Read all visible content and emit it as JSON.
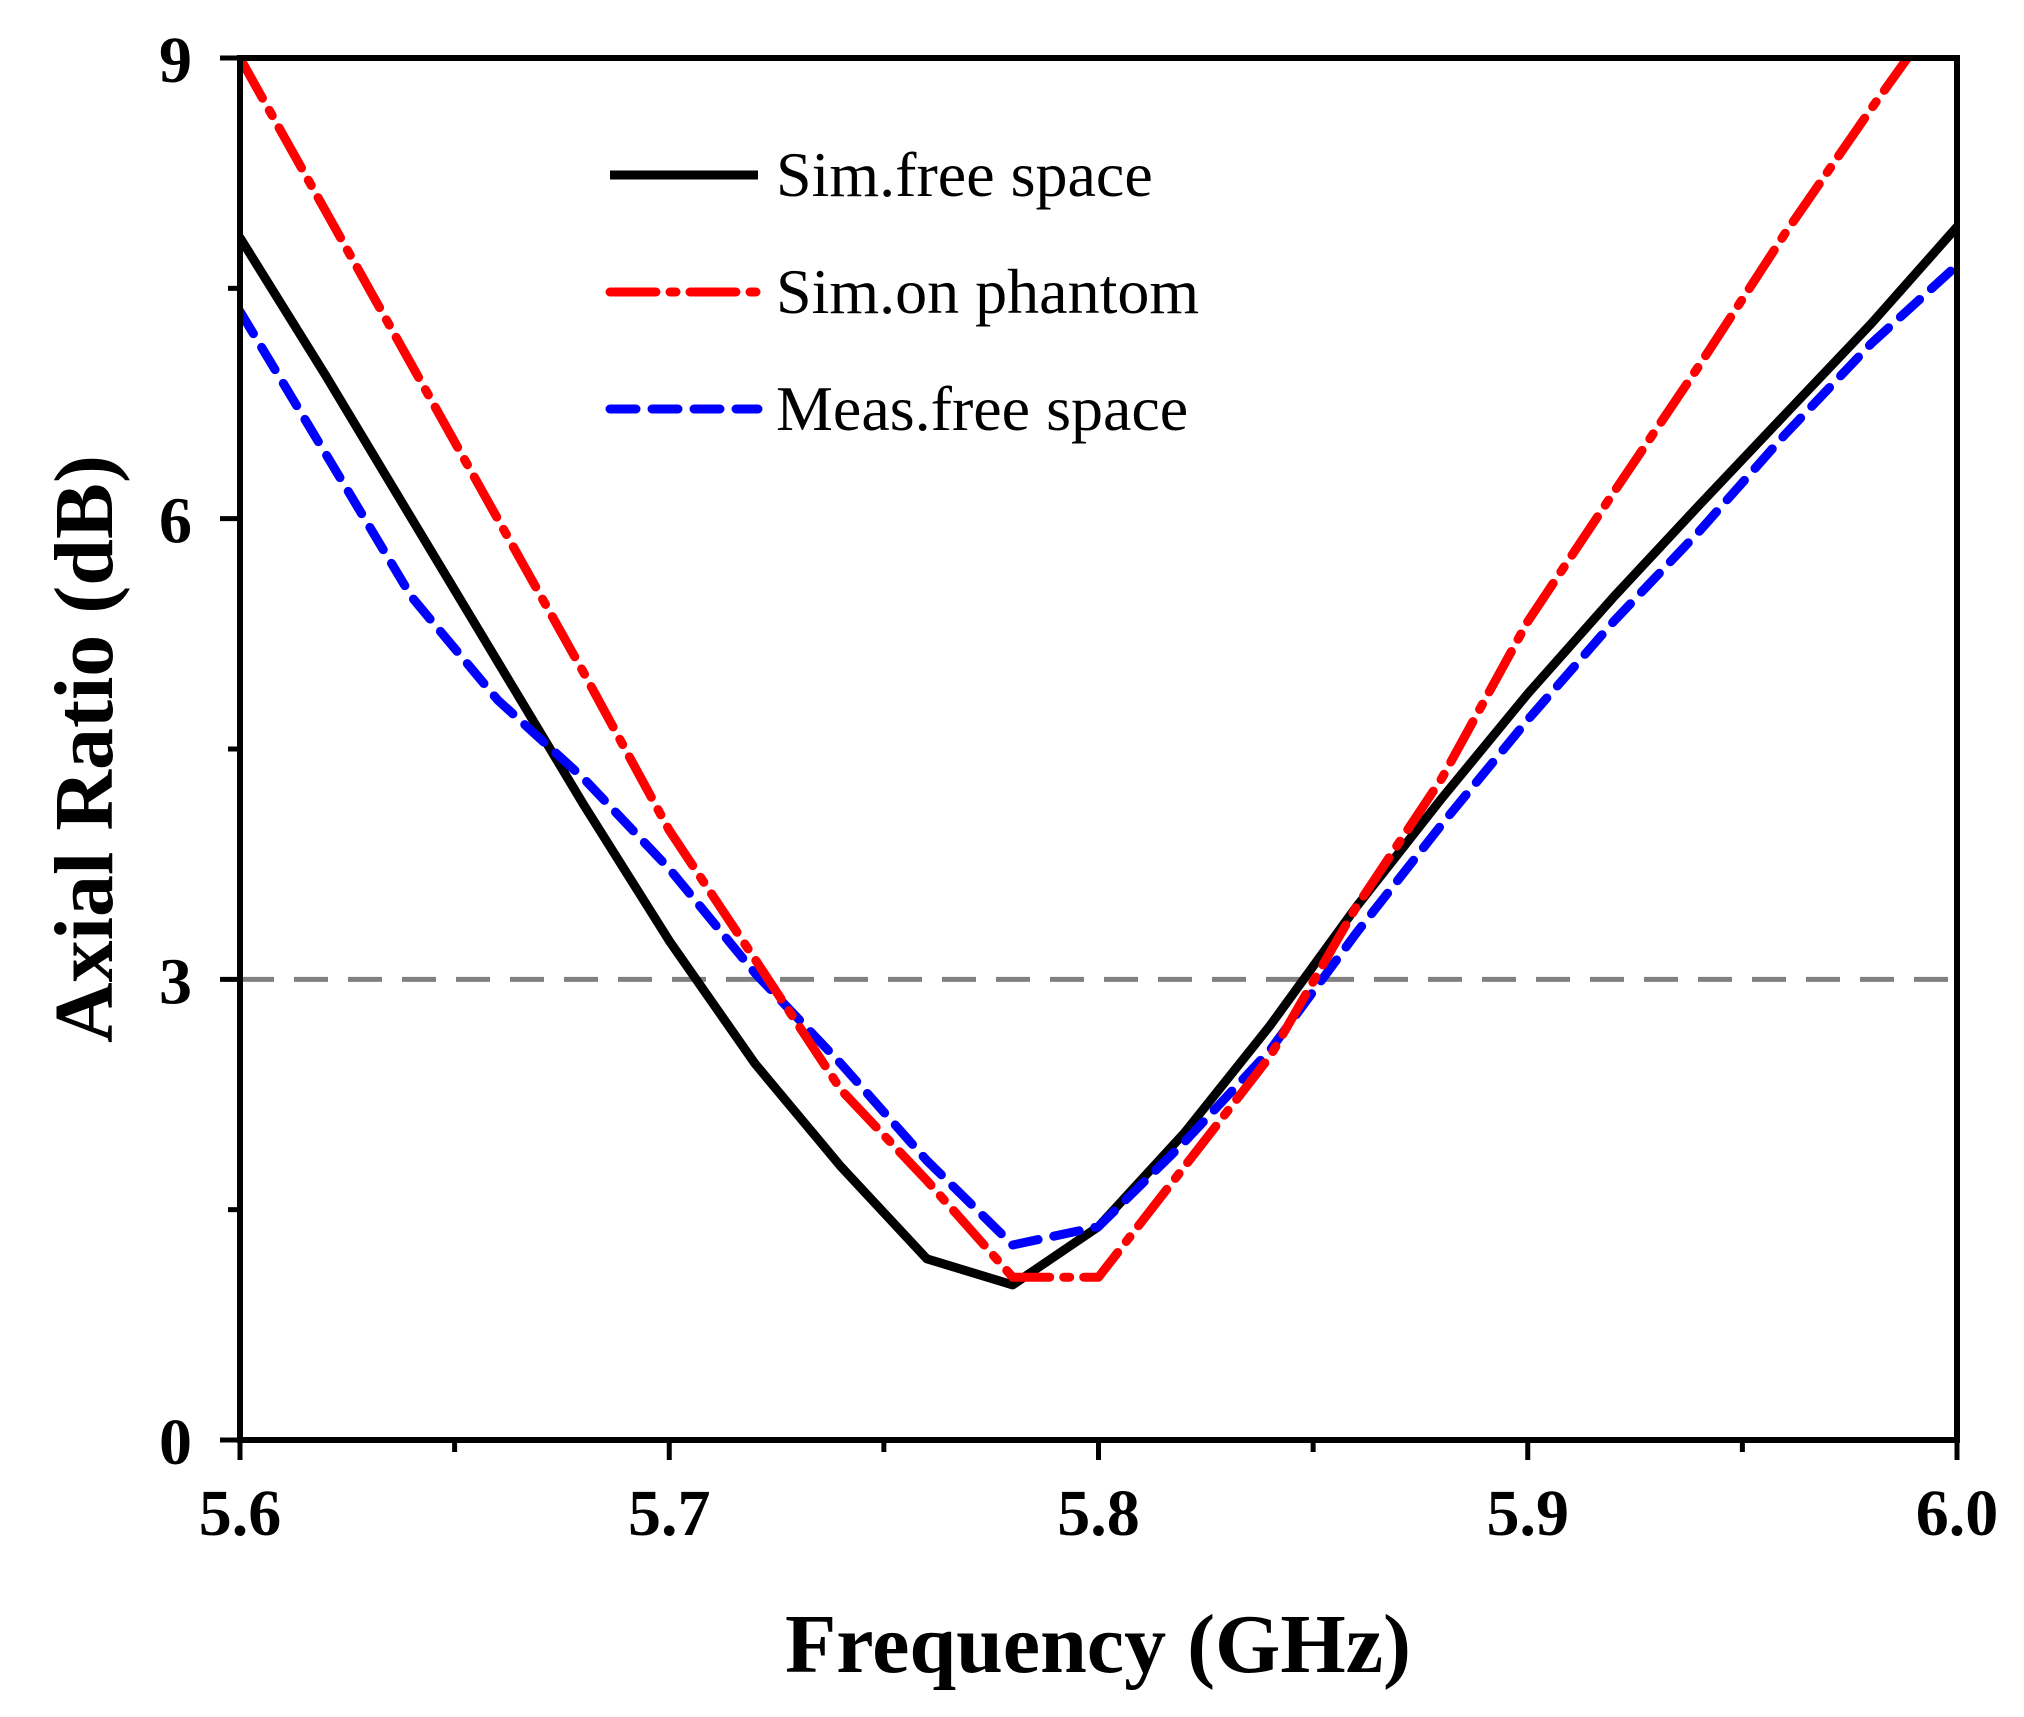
{
  "chart_data": {
    "type": "line",
    "title": "",
    "xlabel": "Frequency (GHz)",
    "ylabel": "Axial Ratio (dB)",
    "xlim": [
      5.6,
      6.0
    ],
    "ylim": [
      0,
      9
    ],
    "xticks": [
      "5.6",
      "5.7",
      "5.8",
      "5.9",
      "6.0"
    ],
    "yticks": [
      "0",
      "3",
      "6",
      "9"
    ],
    "grid": false,
    "legend_position": "top-center",
    "reference_line": {
      "y": 3,
      "color": "#808080",
      "style": "dashed"
    },
    "x": [
      5.6,
      5.62,
      5.64,
      5.66,
      5.68,
      5.7,
      5.72,
      5.74,
      5.76,
      5.78,
      5.8,
      5.82,
      5.84,
      5.86,
      5.88,
      5.9,
      5.92,
      5.94,
      5.96,
      5.98,
      6.0
    ],
    "series": [
      {
        "name": "Sim.free space",
        "color": "#000000",
        "style": "solid",
        "values": [
          7.83,
          6.93,
          6.0,
          5.07,
          4.14,
          3.25,
          2.45,
          1.78,
          1.18,
          1.01,
          1.39,
          2.0,
          2.7,
          3.47,
          4.18,
          4.86,
          5.49,
          6.09,
          6.68,
          7.27,
          7.9
        ]
      },
      {
        "name": "Sim.on phantom",
        "color": "#ff0000",
        "style": "dashdot",
        "values": [
          9.0,
          8.0,
          7.0,
          6.0,
          5.0,
          3.97,
          3.13,
          2.28,
          1.69,
          1.06,
          1.06,
          1.78,
          2.5,
          3.47,
          4.31,
          5.33,
          6.17,
          7.0,
          7.86,
          8.67,
          9.45
        ]
      },
      {
        "name": "Meas.free space",
        "color": "#0000ff",
        "style": "dashed",
        "values": [
          7.35,
          6.42,
          5.49,
          4.82,
          4.31,
          3.72,
          3.04,
          2.45,
          1.82,
          1.27,
          1.39,
          1.94,
          2.54,
          3.3,
          4.01,
          4.69,
          5.33,
          5.92,
          6.55,
          7.14,
          7.65
        ]
      }
    ]
  }
}
